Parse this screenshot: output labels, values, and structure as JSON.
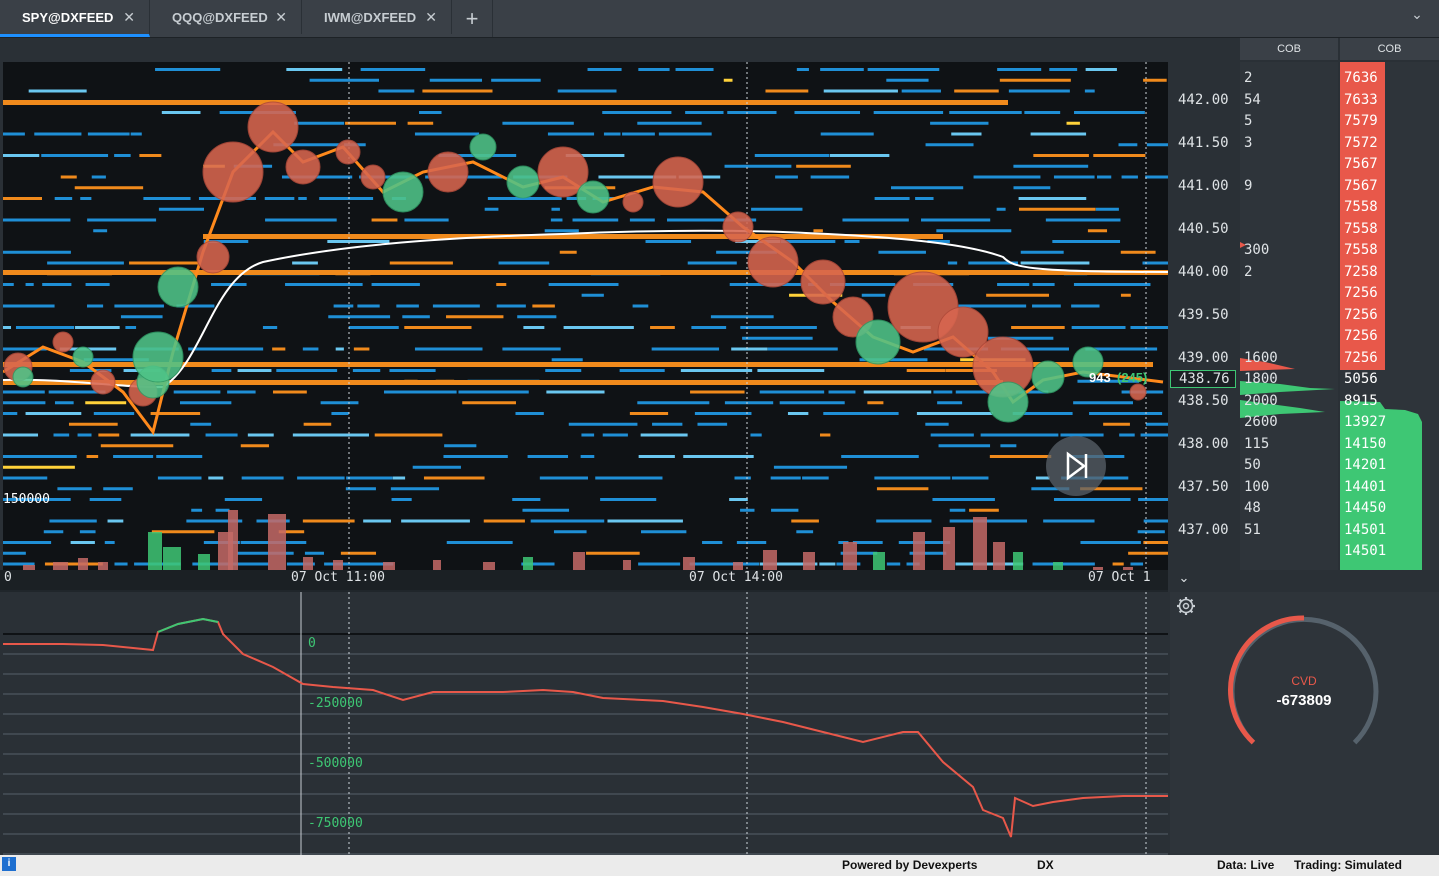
{
  "tabs": [
    {
      "label": "SPY@DXFEED",
      "active": true
    },
    {
      "label": "QQQ@DXFEED",
      "active": false
    },
    {
      "label": "IWM@DXFEED",
      "active": false
    }
  ],
  "tab_close_glyph": "✕",
  "add_tab_glyph": "+",
  "menu_glyph": "⌄",
  "heatmap": {
    "volume_scale_label": "150000",
    "last_trade_label": "943",
    "last_trade_delta": "(245)",
    "play_icon": "skip-to-live-icon"
  },
  "time_axis": {
    "labels": [
      "0",
      "07 Oct 11:00",
      "07 Oct 14:00",
      "07 Oct 1"
    ]
  },
  "price_axis": {
    "labels": [
      "442.00",
      "441.50",
      "441.00",
      "440.50",
      "440.00",
      "439.50",
      "439.00",
      "438.76",
      "438.50",
      "438.00",
      "437.50",
      "437.00"
    ],
    "current_price": "438.76"
  },
  "cob_left": {
    "header": "COB",
    "rows": [
      "2",
      "54",
      "5",
      "3",
      "",
      "9",
      "",
      "",
      "300",
      "2",
      "",
      "",
      "",
      "1600",
      "1800",
      "2000",
      "2600",
      "115",
      "50",
      "100",
      "48",
      "51"
    ]
  },
  "cob_right": {
    "header": "COB",
    "rows": [
      "7636",
      "7633",
      "7579",
      "7572",
      "7567",
      "7567",
      "7558",
      "7558",
      "7558",
      "7258",
      "7256",
      "7256",
      "7256",
      "7256",
      "5056",
      "8915",
      "13927",
      "14150",
      "14201",
      "14401",
      "14450",
      "14501",
      "14501"
    ]
  },
  "cvd": {
    "axis_labels": [
      "0",
      "-250000",
      "-500000",
      "-750000"
    ],
    "gauge_label": "CVD",
    "gauge_value": "-673809",
    "settings_icon": "gear-icon"
  },
  "status_bar": {
    "powered_by": "Powered by Devexperts",
    "logo": "DX",
    "data_status": "Data: Live",
    "trading_status": "Trading: Simulated"
  },
  "colors": {
    "ask": "#e8584a",
    "bid": "#3ec774",
    "accent": "#1e90ff"
  }
}
